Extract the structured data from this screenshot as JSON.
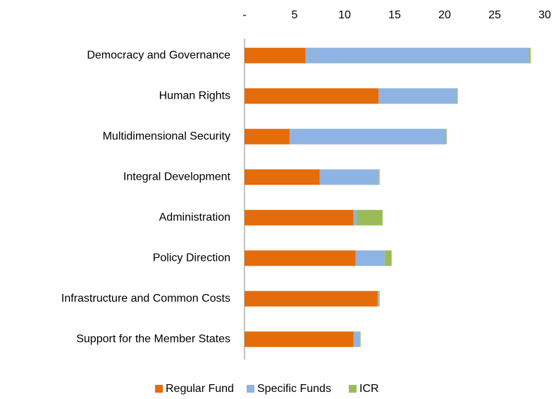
{
  "chart_data": {
    "type": "stacked_barh",
    "categories": [
      "Democracy and Governance",
      "Human Rights",
      "Multidimensional Security",
      "Integral Development",
      "Administration",
      "Policy Direction",
      "Infrastructure and Common Costs",
      "Support for the Member States"
    ],
    "series": [
      {
        "name": "Regular Fund",
        "color": "#e46c0a",
        "values": [
          6.1,
          13.4,
          4.5,
          7.5,
          10.9,
          11.1,
          13.3,
          10.9
        ]
      },
      {
        "name": "Specific Funds",
        "color": "#8eb4e3",
        "values": [
          22.3,
          7.8,
          15.6,
          5.9,
          0.3,
          2.9,
          0.1,
          0.6
        ]
      },
      {
        "name": "ICR",
        "color": "#9bbb59",
        "values": [
          0.2,
          0.1,
          0.1,
          0.1,
          2.6,
          0.7,
          0.1,
          0.1
        ]
      }
    ],
    "xlim": [
      0,
      30
    ],
    "xticks": [
      {
        "value": 0,
        "label": "-"
      },
      5,
      10,
      15,
      20,
      25,
      30
    ],
    "legend": "bottom"
  }
}
